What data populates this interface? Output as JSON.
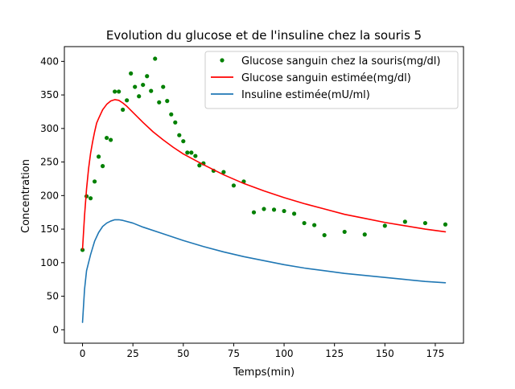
{
  "chart_data": {
    "type": "line",
    "title": "Evolution du glucose et de l'insuline chez la souris 5",
    "xlabel": "Temps(min)",
    "ylabel": "Concentration",
    "xlim": [
      -9,
      189
    ],
    "ylim": [
      -20,
      422
    ],
    "xticks": [
      0,
      25,
      50,
      75,
      100,
      125,
      150,
      175
    ],
    "yticks": [
      0,
      50,
      100,
      150,
      200,
      250,
      300,
      350,
      400
    ],
    "grid": false,
    "legend_position": "top-right",
    "series": [
      {
        "name": "Glucose sanguin chez la souris(mg/dl)",
        "kind": "scatter",
        "color": "#008000",
        "x": [
          0,
          2,
          4,
          6,
          8,
          10,
          12,
          14,
          16,
          18,
          20,
          22,
          24,
          26,
          28,
          30,
          32,
          34,
          36,
          38,
          40,
          42,
          44,
          46,
          48,
          50,
          52,
          54,
          56,
          58,
          60,
          65,
          70,
          75,
          80,
          85,
          90,
          95,
          100,
          105,
          110,
          115,
          120,
          130,
          140,
          150,
          160,
          170,
          180
        ],
        "y": [
          119,
          199,
          196,
          221,
          258,
          244,
          286,
          283,
          355,
          355,
          328,
          342,
          382,
          362,
          348,
          365,
          378,
          356,
          404,
          339,
          362,
          341,
          321,
          309,
          290,
          281,
          264,
          264,
          259,
          245,
          248,
          237,
          235,
          215,
          221,
          175,
          180,
          179,
          177,
          173,
          159,
          156,
          141,
          146,
          142,
          155,
          161,
          159,
          157
        ]
      },
      {
        "name": "Glucose sanguin estimée(mg/dl)",
        "kind": "line",
        "color": "#ff0000",
        "x": [
          0,
          1,
          2,
          3,
          4,
          5,
          6,
          7,
          8,
          10,
          12,
          14,
          16,
          18,
          20,
          22,
          24,
          26,
          28,
          30,
          35,
          40,
          45,
          50,
          60,
          70,
          80,
          90,
          100,
          110,
          120,
          130,
          140,
          150,
          160,
          170,
          180
        ],
        "y": [
          120,
          170,
          210,
          240,
          263,
          280,
          295,
          308,
          315,
          328,
          336,
          341,
          343,
          342,
          338,
          333,
          327,
          321,
          315,
          309,
          295,
          283,
          272,
          262,
          246,
          231,
          218,
          207,
          197,
          188,
          180,
          172,
          166,
          160,
          155,
          150,
          146
        ]
      },
      {
        "name": "Insuline estimée(mU/ml)",
        "kind": "line",
        "color": "#1f77b4",
        "x": [
          0,
          1,
          2,
          3,
          4,
          5,
          6,
          8,
          10,
          12,
          14,
          16,
          18,
          20,
          25,
          30,
          40,
          50,
          60,
          70,
          80,
          90,
          100,
          110,
          120,
          130,
          140,
          150,
          160,
          170,
          180
        ],
        "y": [
          11,
          60,
          88,
          100,
          112,
          122,
          132,
          145,
          154,
          159,
          162,
          164,
          164,
          163,
          159,
          153,
          143,
          133,
          124,
          116,
          109,
          103,
          97,
          92,
          88,
          84,
          81,
          78,
          75,
          72,
          70
        ]
      }
    ]
  }
}
